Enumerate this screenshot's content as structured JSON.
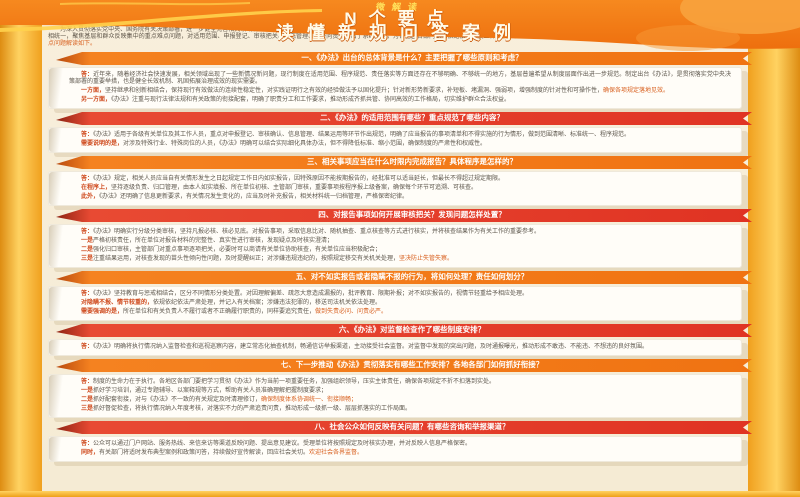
{
  "poster": {
    "kicker": "微解读",
    "title_line1": "N个要点",
    "title_line2": "读懂新规问答案例",
    "colors": {
      "header_orange": "#f0770f",
      "ribbon_orange": "#f58220",
      "ribbon_red": "#e84a33",
      "gold_rail": "#ffd261",
      "cream_background": "#f8efdc",
      "body_text": "#5d564c",
      "emphasis": "#d8601f"
    }
  },
  "intro": {
    "text": "为深入贯彻落实党中央、国务院有关决策部署，进一步健全完善相关领域制度机制，切实规范管理、压实责任，有关部门近日联合印发了《关于进一步加强和规范有关管理工作的办法（试行）》（以下简称《办法》）。《办法》坚持问题导向、目标导向和结果导向相统一，聚焦基层和群众反映集中的重点难点问题，对适用范围、申报登记、审核把关、动态管理、监督问责等作出了系统规定，为各地区各部门依规依纪依法开展工作提供了基本遵循。",
    "em": "为便于社会各界更好理解掌握《办法》精神，现将社会关注度较高的N个要点问题解读如下。"
  },
  "sections": [
    {
      "color": "orange",
      "title": "一、《办法》出台的总体背景是什么？主要把握了哪些原则和考虑？",
      "paras": [
        {
          "l": "答：",
          "t": "近年来，随着经济社会快速发展，相关领域出现了一些新情况新问题，现行制度在适用范围、程序规范、责任落实等方面还存在不够明确、不够统一的地方，基层普遍希望从制度层面作出进一步规范。制定出台《办法》，是贯彻落实党中央决策部署的重要举措，也是健全长效机制、巩固拓展治理成效的现实需要。",
          "e": ""
        },
        {
          "l": "一方面，",
          "t": "坚持继承和创新相结合，保持现行有效做法的连续性稳定性，对实践证明行之有效的经验做法予以固化提升；针对新形势新要求，补短板、堵漏洞、强弱项，增强制度的针对性和可操作性，",
          "e": "确保各项规定落地见效。"
        },
        {
          "l": "另一方面，",
          "t": "《办法》注重与现行法律法规和有关政策的衔接配套，明确了职责分工和工作要求，推动形成齐抓共管、协同高效的工作格局，切实维护群众合法权益。",
          "e": ""
        }
      ]
    },
    {
      "color": "red",
      "title": "二、《办法》的适用范围有哪些？重点规范了哪些内容？",
      "paras": [
        {
          "l": "答：",
          "t": "《办法》适用于各级有关单位及其工作人员，重点对申报登记、审核确认、信息管理、结果运用等环节作出规范，明确了应当报告的事项清单和不得实施的行为情形，做到范围清晰、标准统一、程序规范。",
          "e": ""
        },
        {
          "l": "需要说明的是，",
          "t": "对涉及特殊行业、特殊岗位的人员，《办法》明确可以结合实际细化具体办法，但不得降低标准、缩小范围，确保制度的严肃性和权威性。",
          "e": ""
        }
      ]
    },
    {
      "color": "orange",
      "title": "三、相关事项应当在什么时限内完成报告？具体程序是怎样的？",
      "paras": [
        {
          "l": "答：",
          "t": "《办法》规定，相关人员应当自有关情形发生之日起规定工作日内如实报告，因特殊原因不能按期报告的，经批准可以适当延长，但最长不得超过规定期限。",
          "e": ""
        },
        {
          "l": "在程序上，",
          "t": "坚持逐级负责、归口管理，由本人如实填报、所在单位初核、主管部门审核，重要事项按程序报上级备案，确保每个环节可追溯、可核查。",
          "e": ""
        },
        {
          "l": "此外，",
          "t": "《办法》还明确了信息更新要求，有关情况发生变化的，应当及时补充报告，相关材料统一归档管理，严格保密纪律。",
          "e": ""
        }
      ]
    },
    {
      "color": "red",
      "title": "四、对报告事项如何开展审核把关？发现问题怎样处置？",
      "paras": [
        {
          "l": "答：",
          "t": "《办法》明确实行分级分类审核，坚持凡报必核、核必见底。对报告事项，采取信息比对、随机抽查、重点核查等方式进行核实，并将核查结果作为有关工作的重要参考。",
          "e": ""
        },
        {
          "l": "一是",
          "t": "严格初核责任，所在单位对报告材料的完整性、真实性进行审核，发现疑点及时核实澄清；",
          "e": ""
        },
        {
          "l": "二是",
          "t": "强化归口审核，主管部门对重点事项逐项把关，必要时可以商请有关单位协助核查，有关单位应当积极配合；",
          "e": ""
        },
        {
          "l": "三是",
          "t": "注重结果运用，对核查发现的苗头性倾向性问题，及时提醒纠正；对涉嫌违规违纪的，按照规定移交有关机关处理，",
          "e": "坚决防止失管失察。"
        }
      ]
    },
    {
      "color": "orange",
      "title": "五、对不如实报告或者隐瞒不报的行为，将如何处理？责任如何划分？",
      "paras": [
        {
          "l": "答：",
          "t": "《办法》坚持教育与惩戒相结合，区分不同情形分类处置。对因理解偏差、疏忽大意造成漏报的，批评教育、限期补报；对不如实报告的，视情节轻重给予相应处理。",
          "e": ""
        },
        {
          "l": "对隐瞒不报、情节较重的，",
          "t": "依规依纪依法严肃处理，并记入有关档案；涉嫌违法犯罪的，移送司法机关依法处理。",
          "e": ""
        },
        {
          "l": "需要强调的是，",
          "t": "所在单位和有关负责人不履行或者不正确履行职责的，同样要追究责任，",
          "e": "做到失责必问、问责必严。"
        }
      ]
    },
    {
      "color": "red",
      "title": "六、《办法》对监督检查作了哪些制度安排？",
      "paras": [
        {
          "l": "答：",
          "t": "《办法》明确将执行情况纳入监督检查和巡视巡察内容，建立常态化抽查机制，畅通信访举报渠道，主动接受社会监督。对监督中发现的突出问题，及时通报曝光，推动形成不敢违、不能违、不想违的良好氛围。",
          "e": ""
        }
      ]
    },
    {
      "color": "orange",
      "title": "七、下一步推动《办法》贯彻落实有哪些工作安排？各地各部门如何抓好衔接？",
      "paras": [
        {
          "l": "答：",
          "t": "制度的生命力在于执行。各地区各部门要把学习贯彻《办法》作为当前一项重要任务，加强组织领导，压实主体责任，确保各项规定不折不扣落到实处。",
          "e": ""
        },
        {
          "l": "一是",
          "t": "抓好学习培训，通过专题辅导、以案释规等方式，帮助有关人员准确理解把握制度要求；",
          "e": ""
        },
        {
          "l": "二是",
          "t": "抓好配套衔接，对与《办法》不一致的有关规定及时清理修订，",
          "e": "确保制度体系协调统一、衔接顺畅；"
        },
        {
          "l": "三是",
          "t": "抓好督促检查，将执行情况纳入年度考核，对落实不力的严肃追责问责，推动形成一级抓一级、层层抓落实的工作局面。",
          "e": ""
        }
      ]
    },
    {
      "color": "red",
      "title": "八、社会公众如何反映有关问题？有哪些咨询和举报渠道？",
      "paras": [
        {
          "l": "答：",
          "t": "公众可以通过门户网站、服务热线、来信来访等渠道反映问题、提出意见建议。受理单位将按照规定及时核实办理，并对反映人信息严格保密。",
          "e": ""
        },
        {
          "l": "同时，",
          "t": "有关部门将适时发布典型案例和政策问答，持续做好宣传解读，回应社会关切。",
          "e": "欢迎社会各界监督。"
        }
      ]
    }
  ]
}
